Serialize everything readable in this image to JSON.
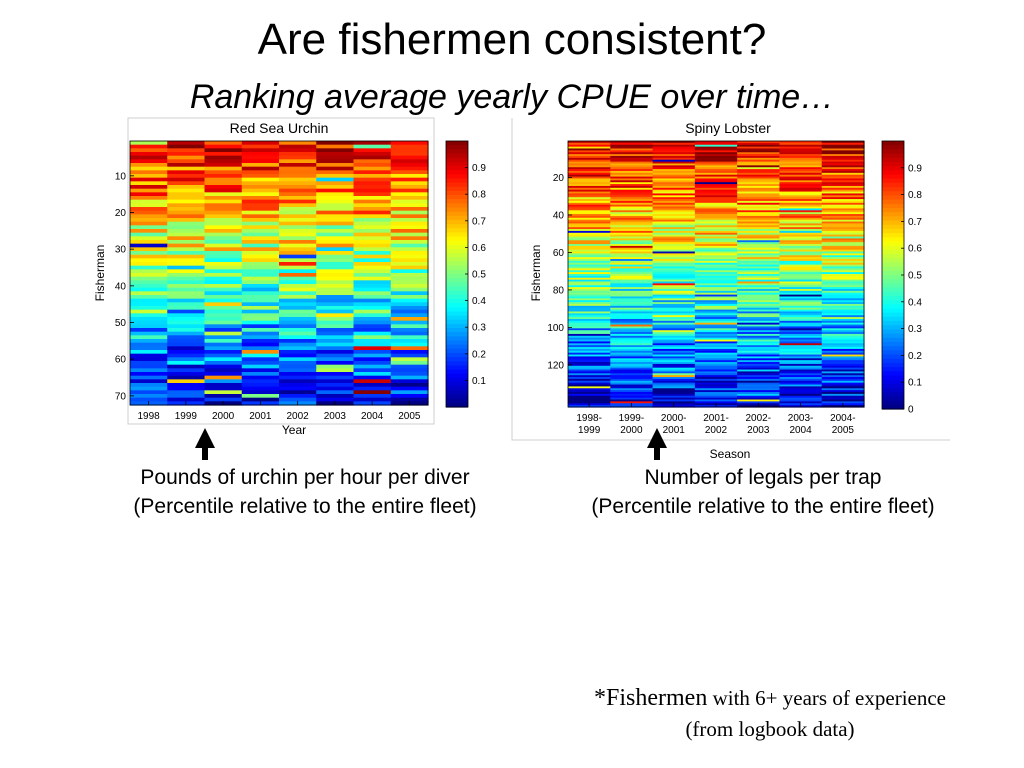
{
  "slide": {
    "title": "Are fishermen consistent?",
    "subtitle": "Ranking average yearly CPUE over time…",
    "caption_left_1": "Pounds of urchin per hour per diver",
    "caption_left_2": "(Percentile relative to the entire fleet)",
    "caption_right_1": "Number of legals per trap",
    "caption_right_2": "(Percentile relative to the entire fleet)",
    "footnote_star": "*Fishermen",
    "footnote_rest": " with 6+ years of experience",
    "footnote_line2": "(from logbook data)"
  },
  "colors": {
    "arrow": "#000000",
    "frame": "#cfcfcf",
    "colormap": "jet"
  },
  "chart_data": [
    {
      "type": "heatmap",
      "title": "Red Sea Urchin",
      "xlabel": "Year",
      "ylabel": "Fisherman",
      "x_categories": [
        "1998",
        "1999",
        "2000",
        "2001",
        "2002",
        "2003",
        "2004",
        "2005"
      ],
      "y_range": [
        1,
        72
      ],
      "y_ticks": [
        10,
        20,
        30,
        40,
        50,
        60,
        70
      ],
      "rows": 72,
      "value_range": [
        0,
        1
      ],
      "colorbar_ticks": [
        0.1,
        0.2,
        0.3,
        0.4,
        0.5,
        0.6,
        0.7,
        0.8,
        0.9
      ],
      "colorbar_tick_labels": [
        "0.1",
        "0.2",
        "0.3",
        "0.4",
        "0.5",
        "0.6",
        "0.7",
        "0.8",
        "0.9"
      ],
      "trend": "rows sorted by average percentile: high (red) at top, low (blue) at bottom",
      "row_mean_top": 0.9,
      "row_mean_bottom": 0.1
    },
    {
      "type": "heatmap",
      "title": "Spiny Lobster",
      "xlabel": "Season",
      "ylabel": "Fisherman",
      "x_categories": [
        "1998-1999",
        "1999-2000",
        "2000-2001",
        "2001-2002",
        "2002-2003",
        "2003-2004",
        "2004-2005"
      ],
      "x_tick_lines": [
        [
          "1998-",
          "1999"
        ],
        [
          "1999-",
          "2000"
        ],
        [
          "2000-",
          "2001"
        ],
        [
          "2001-",
          "2002"
        ],
        [
          "2002-",
          "2003"
        ],
        [
          "2003-",
          "2004"
        ],
        [
          "2004-",
          "2005"
        ]
      ],
      "y_range": [
        1,
        142
      ],
      "y_ticks": [
        20,
        40,
        60,
        80,
        100,
        120
      ],
      "rows": 142,
      "value_range": [
        0,
        1
      ],
      "colorbar_ticks": [
        0,
        0.1,
        0.2,
        0.3,
        0.4,
        0.5,
        0.6,
        0.7,
        0.8,
        0.9
      ],
      "colorbar_tick_labels": [
        "0",
        "0.1",
        "0.2",
        "0.3",
        "0.4",
        "0.5",
        "0.6",
        "0.7",
        "0.8",
        "0.9"
      ],
      "trend": "rows sorted by average percentile: high (red) at top, low (blue) at bottom",
      "row_mean_top": 0.92,
      "row_mean_bottom": 0.08
    }
  ]
}
